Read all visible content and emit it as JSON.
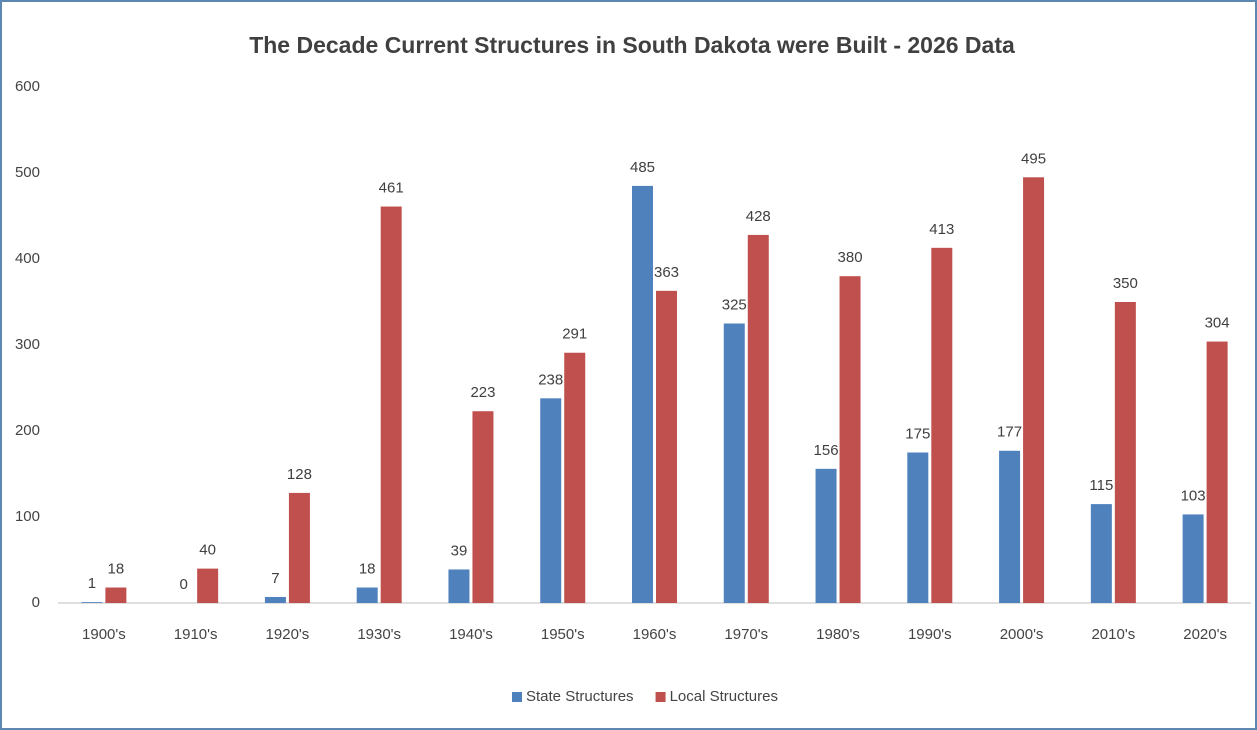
{
  "chart_data": {
    "type": "bar",
    "title": "The Decade Current Structures in South Dakota were Built - 2026 Data",
    "categories": [
      "1900's",
      "1910's",
      "1920's",
      "1930's",
      "1940's",
      "1950's",
      "1960's",
      "1970's",
      "1980's",
      "1990's",
      "2000's",
      "2010's",
      "2020's"
    ],
    "series": [
      {
        "name": "State Structures",
        "color": "#4f81bd",
        "values": [
          1,
          0,
          7,
          18,
          39,
          238,
          485,
          325,
          156,
          175,
          177,
          115,
          103
        ]
      },
      {
        "name": "Local Structures",
        "color": "#c0504d",
        "values": [
          18,
          40,
          128,
          461,
          223,
          291,
          363,
          428,
          380,
          413,
          495,
          350,
          304
        ]
      }
    ],
    "ylim": [
      0,
      600
    ],
    "yticks": [
      0,
      100,
      200,
      300,
      400,
      500,
      600
    ],
    "grid": false,
    "legend": "bottom"
  }
}
